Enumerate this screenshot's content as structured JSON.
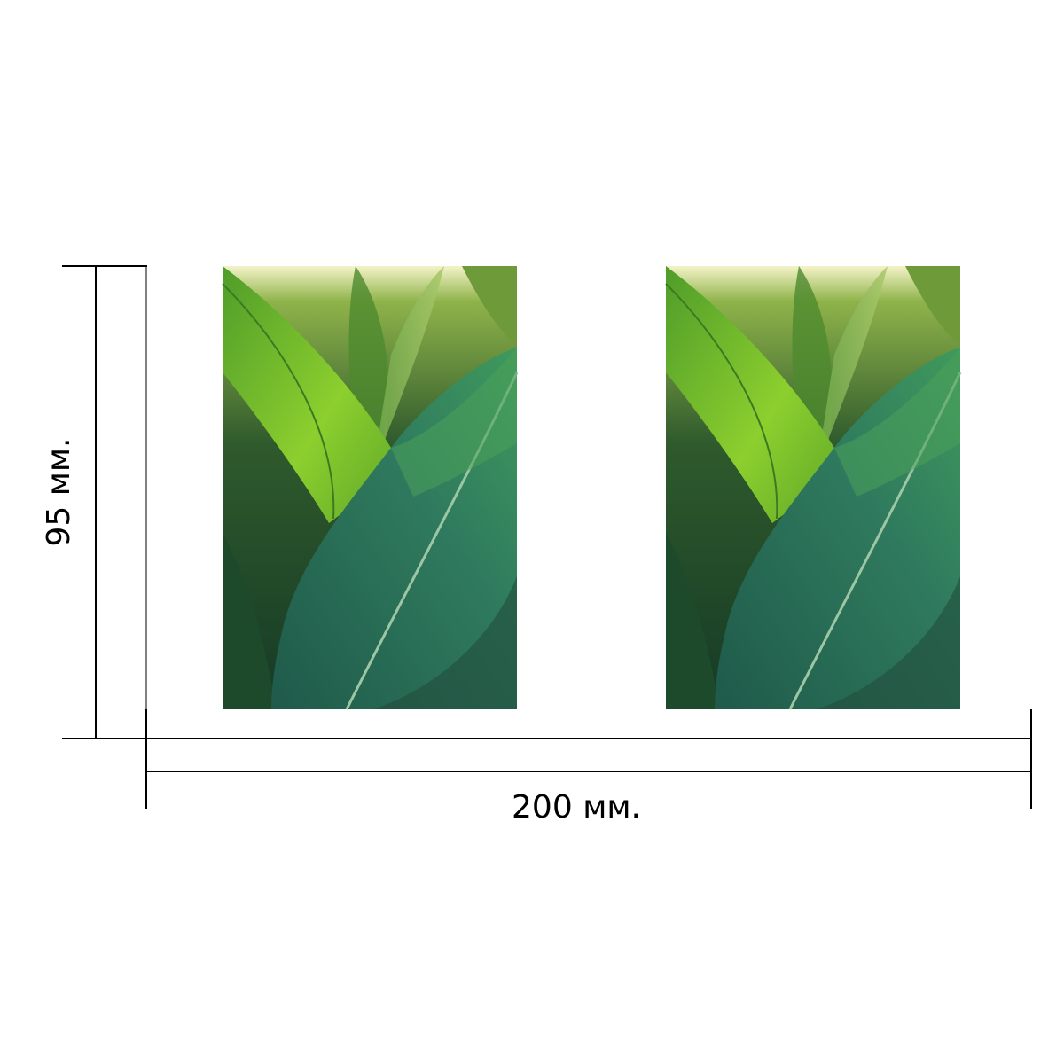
{
  "height_label": "95 мм.",
  "width_label": "200 мм."
}
